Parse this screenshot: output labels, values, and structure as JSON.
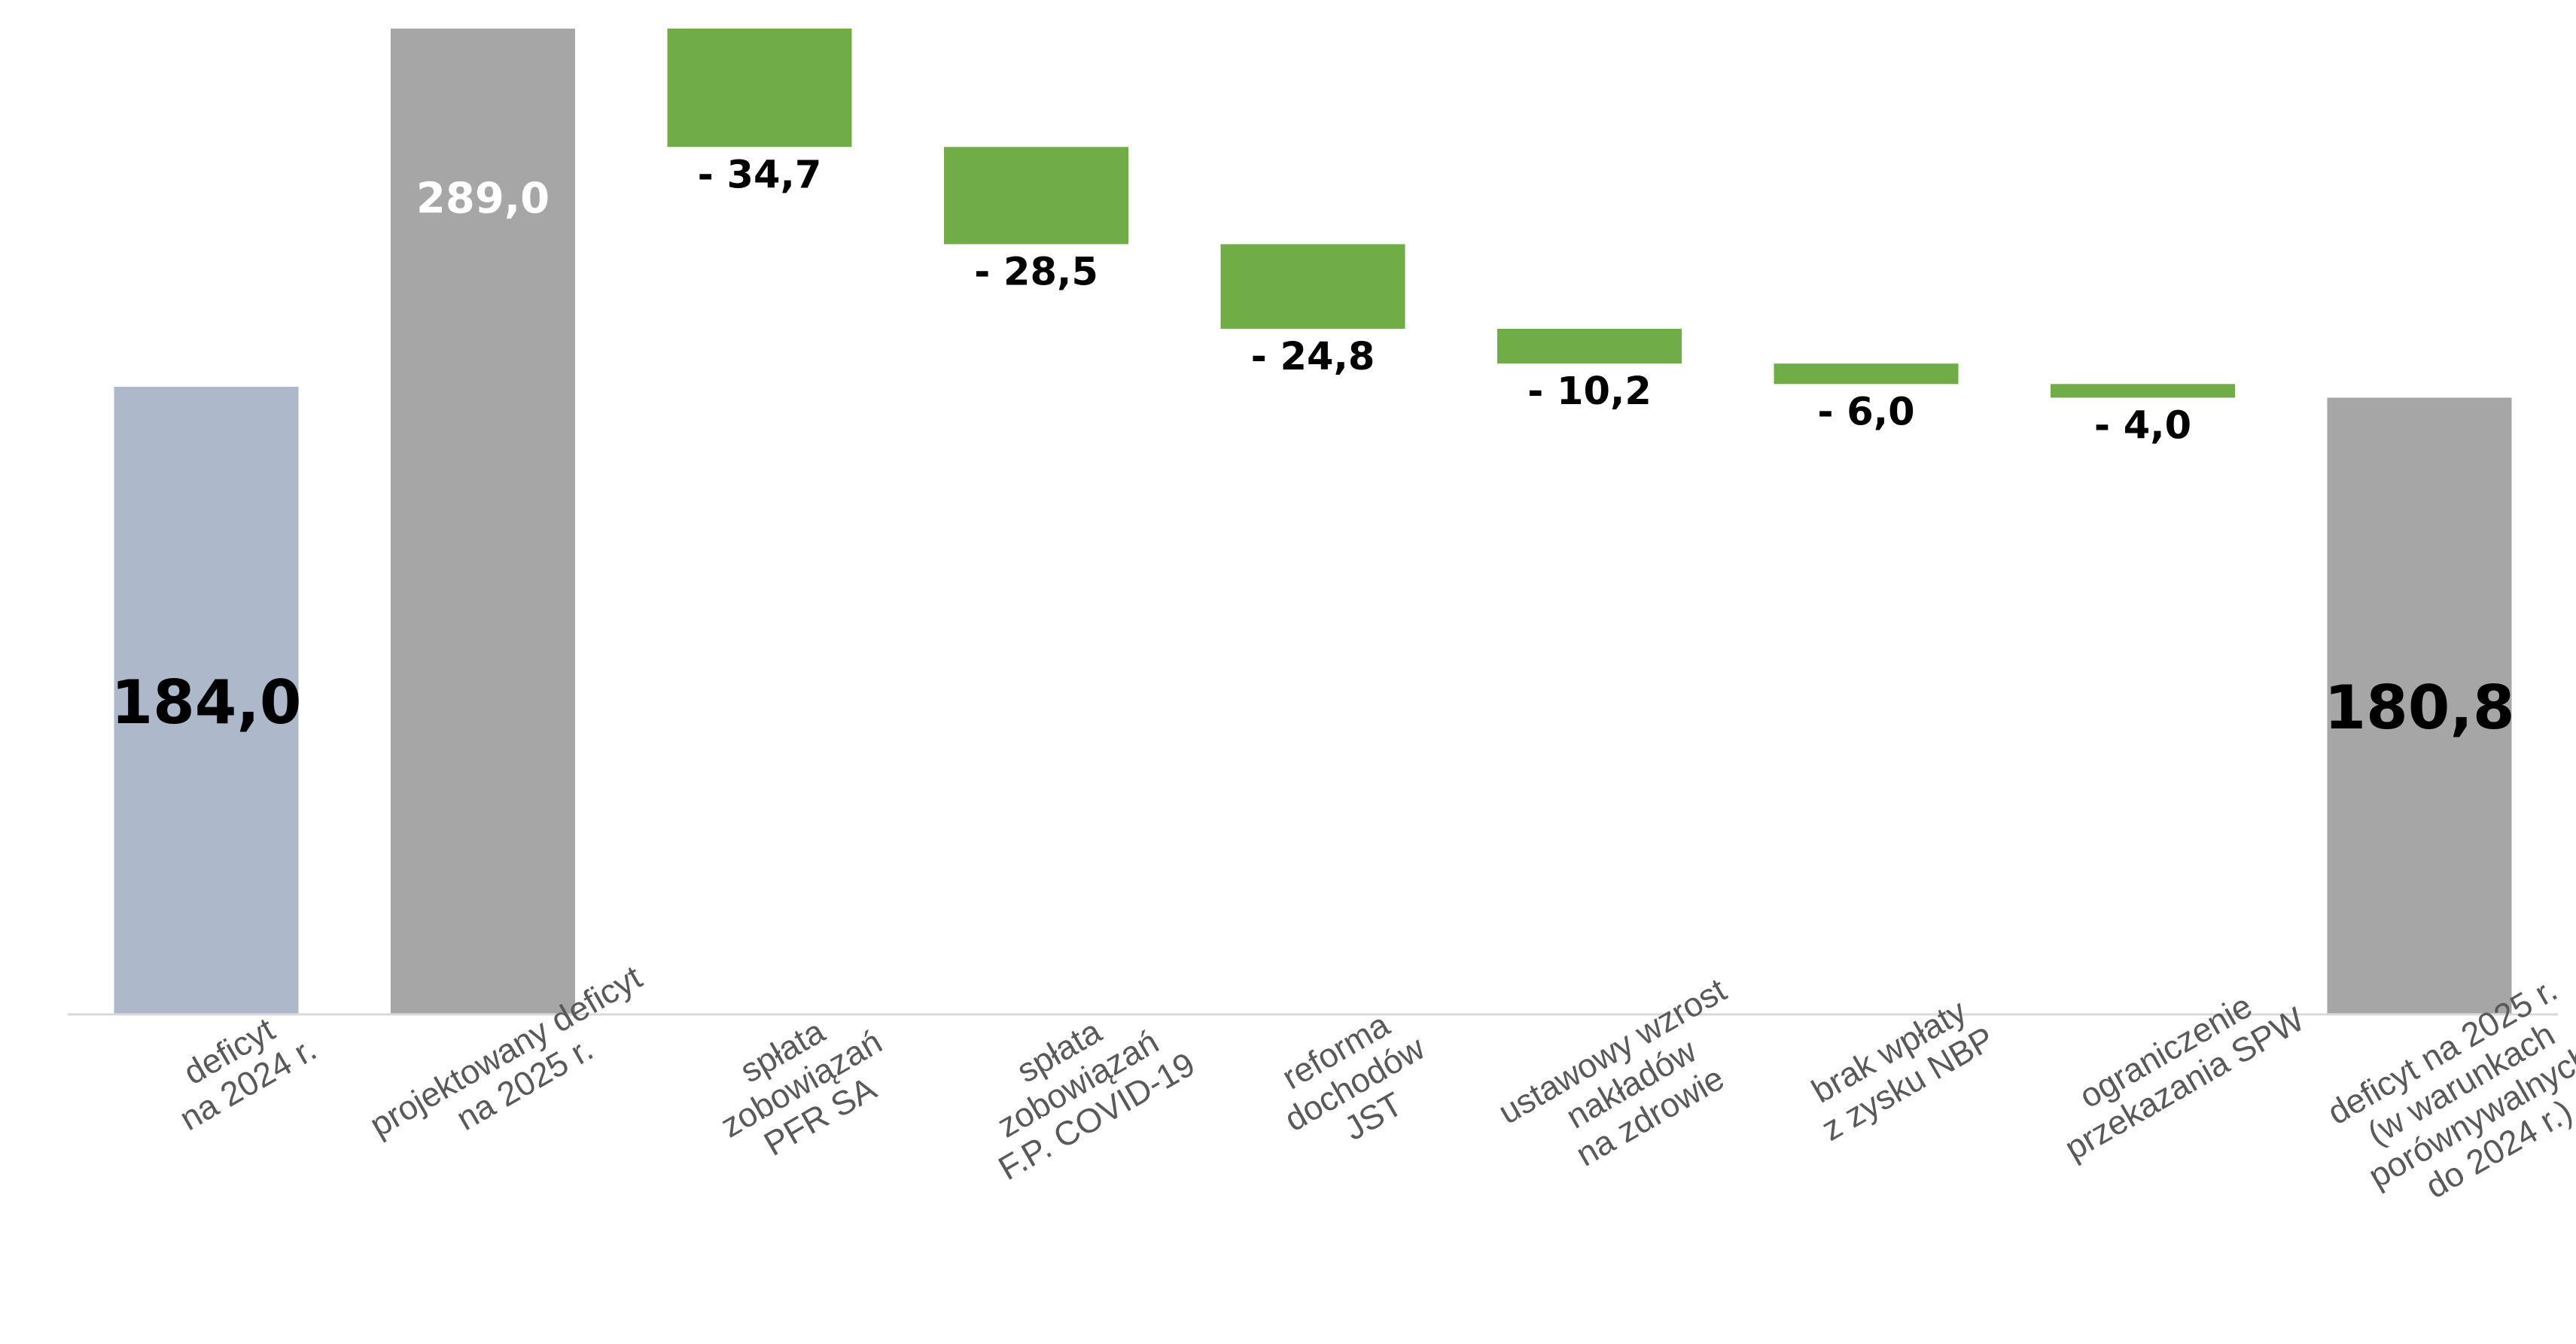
{
  "chart_data": {
    "type": "bar",
    "subtype": "waterfall",
    "title": "",
    "xlabel": "",
    "ylabel": "",
    "grid": false,
    "legend": "none",
    "ylim": [
      0,
      289.0
    ],
    "categories": [
      [
        "deficyt",
        "na 2024 r."
      ],
      [
        "projektowany deficyt",
        "na 2025 r."
      ],
      [
        "spłata",
        "zobowiązań",
        "PFR SA"
      ],
      [
        "spłata",
        "zobowiązań",
        "F.P. COVID-19"
      ],
      [
        "reforma",
        "dochodów",
        "JST"
      ],
      [
        "ustawowy wzrost",
        "nakładów",
        "na zdrowie"
      ],
      [
        "brak wpłaty",
        "z zysku NBP"
      ],
      [
        "ograniczenie",
        "przekazania SPW"
      ],
      [
        "deficyt na 2025 r.",
        "(w warunkach",
        "porównywalnych",
        "do 2024 r.)"
      ]
    ],
    "values": [
      184.0,
      289.0,
      -34.7,
      -28.5,
      -24.8,
      -10.2,
      -6.0,
      -4.0,
      180.8
    ],
    "kinds": [
      "total",
      "total",
      "delta",
      "delta",
      "delta",
      "delta",
      "delta",
      "delta",
      "total"
    ],
    "data_labels": [
      "184,0",
      "289,0",
      "- 34,7",
      "- 28,5",
      "- 24,8",
      "- 10,2",
      "- 6,0",
      "- 4,0",
      "180,8"
    ],
    "colors": {
      "first_total": "#adb9ca",
      "total": "#a6a6a6",
      "decrease": "#70ad47",
      "axis": "#d9d9d9",
      "label_dark": "#000000",
      "label_light": "#ffffff",
      "category_text": "#595959"
    }
  }
}
